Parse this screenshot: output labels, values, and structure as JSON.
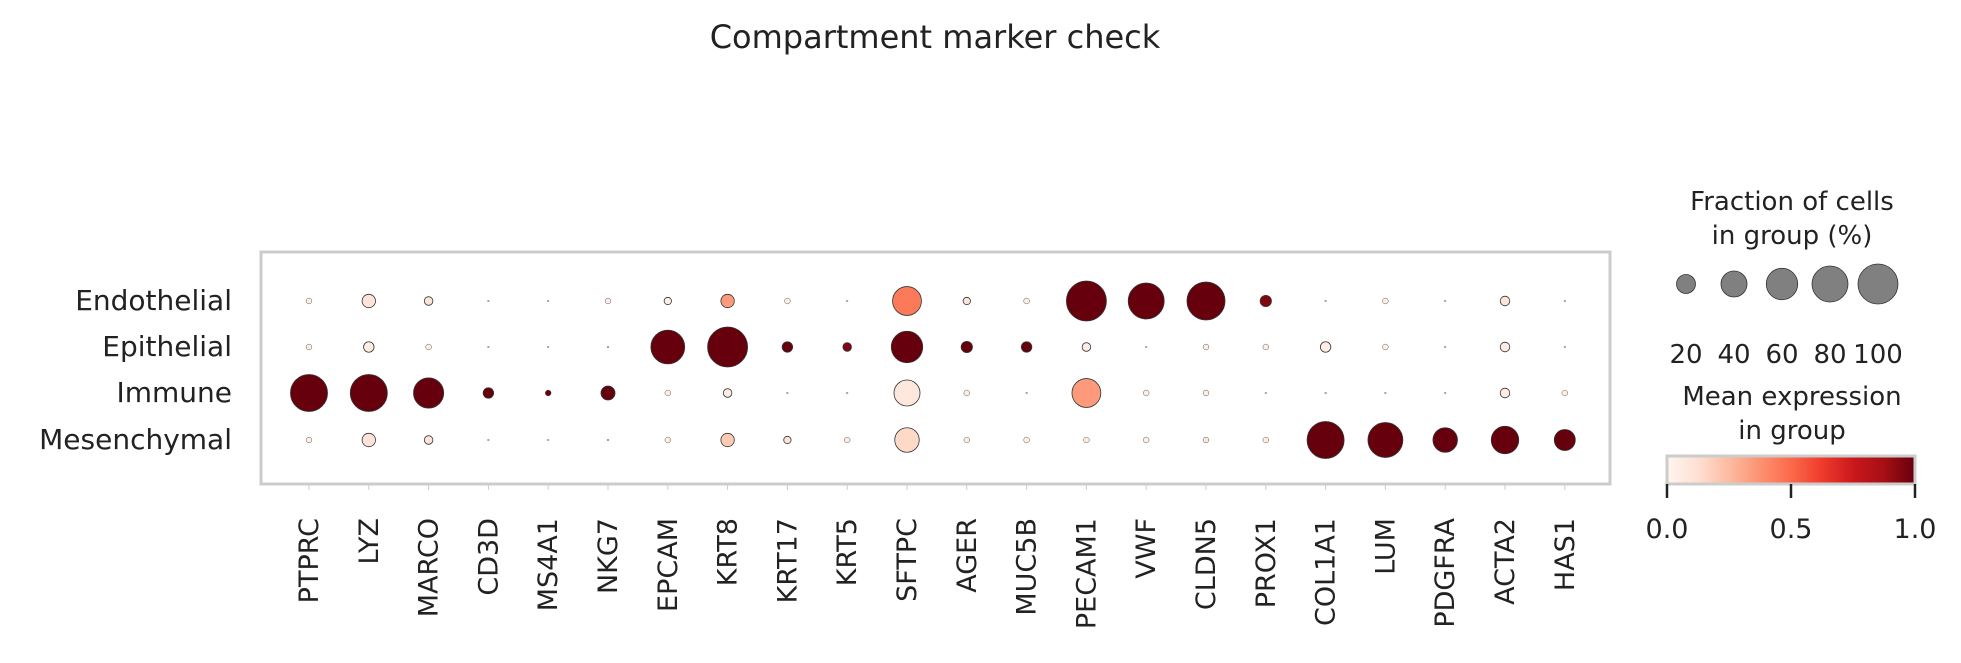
{
  "chart_data": {
    "type": "dotplot",
    "title": "Compartment marker check",
    "genes": [
      "PTPRC",
      "LYZ",
      "MARCO",
      "CD3D",
      "MS4A1",
      "NKG7",
      "EPCAM",
      "KRT8",
      "KRT17",
      "KRT5",
      "SFTPC",
      "AGER",
      "MUC5B",
      "PECAM1",
      "VWF",
      "CLDN5",
      "PROX1",
      "COL1A1",
      "LUM",
      "PDGFRA",
      "ACTA2",
      "HAS1"
    ],
    "groups": [
      "Endothelial",
      "Epithelial",
      "Immune",
      "Mesenchymal"
    ],
    "fraction_pct": [
      [
        1,
        9,
        3,
        0,
        0,
        1,
        2,
        9,
        1,
        0,
        50,
        2,
        1,
        100,
        80,
        90,
        6,
        0,
        1,
        0,
        4,
        0
      ],
      [
        1,
        5,
        1,
        0,
        0,
        0,
        70,
        100,
        5,
        3,
        60,
        6,
        5,
        3,
        0,
        1,
        1,
        5,
        1,
        0,
        4,
        0
      ],
      [
        85,
        85,
        55,
        5,
        1,
        10,
        1,
        3,
        0,
        0,
        40,
        1,
        0,
        50,
        1,
        1,
        0,
        0,
        0,
        0,
        4,
        1
      ],
      [
        1,
        9,
        3,
        0,
        0,
        0,
        1,
        9,
        2,
        1,
        35,
        1,
        1,
        1,
        1,
        1,
        1,
        85,
        75,
        35,
        45,
        25
      ]
    ],
    "mean_expression": [
      [
        0.05,
        0.1,
        0.1,
        0,
        0,
        0.05,
        0.05,
        0.35,
        0.05,
        0,
        0.45,
        0.1,
        0.05,
        1.0,
        1.0,
        1.0,
        0.95,
        0,
        0.05,
        0,
        0.1,
        0
      ],
      [
        0.05,
        0.05,
        0.05,
        0,
        0,
        0,
        1.0,
        1.0,
        1.0,
        0.95,
        1.0,
        1.0,
        1.0,
        0.05,
        0,
        0.05,
        0.05,
        0.05,
        0.05,
        0,
        0.05,
        0
      ],
      [
        1.0,
        1.0,
        1.0,
        1.0,
        1.0,
        1.0,
        0.05,
        0.05,
        0,
        0,
        0.08,
        0.05,
        0,
        0.35,
        0.05,
        0.05,
        0,
        0,
        0,
        0,
        0.05,
        0.05
      ],
      [
        0.05,
        0.1,
        0.1,
        0,
        0,
        0,
        0.05,
        0.2,
        0.1,
        0.05,
        0.15,
        0.05,
        0.05,
        0.05,
        0.05,
        0.1,
        0.05,
        1.0,
        1.0,
        1.0,
        1.0,
        1.0
      ]
    ],
    "size_legend": {
      "title_line1": "Fraction of cells",
      "title_line2": "in group (%)",
      "values": [
        20,
        40,
        60,
        80,
        100
      ],
      "tick_labels": [
        "20",
        "40",
        "60",
        "80",
        "100"
      ]
    },
    "color_legend": {
      "title_line1": "Mean expression",
      "title_line2": "in group",
      "range": [
        0.0,
        1.0
      ],
      "tick_labels": [
        "0.0",
        "0.5",
        "1.0"
      ],
      "colormap": "Reds"
    },
    "colors": {
      "low": "#fff5f0",
      "mid": "#fb6a4a",
      "high": "#67000d",
      "frame": "#cccccc",
      "legend_dot": "#808080"
    }
  }
}
